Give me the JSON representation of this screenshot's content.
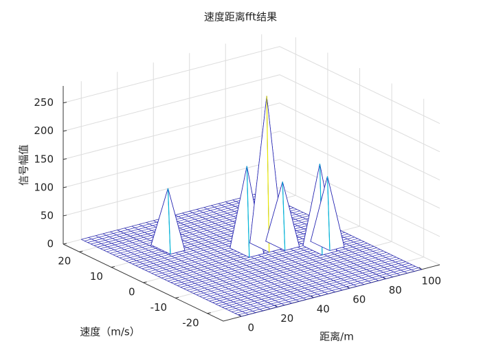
{
  "chart_data": {
    "type": "mesh3d",
    "title": "速度距离fft结果",
    "xlabel": "距离/m",
    "ylabel": "速度（m/s）",
    "zlabel": "信号幅值",
    "xlim": [
      -10,
      110
    ],
    "ylim": [
      -25,
      25
    ],
    "zlim": [
      0,
      280
    ],
    "xticks": [
      0,
      20,
      40,
      60,
      80,
      100
    ],
    "yticks": [
      -20,
      -10,
      0,
      10,
      20
    ],
    "zticks": [
      0,
      50,
      100,
      150,
      200,
      250
    ],
    "grid": true,
    "color": "#2020b0",
    "peaks": {
      "x": [
        25,
        79,
        85,
        51,
        62,
        69
      ],
      "y": [
        12,
        -5,
        -4,
        2,
        2,
        1
      ],
      "z": [
        105,
        150,
        120,
        150,
        265,
        110
      ]
    }
  }
}
